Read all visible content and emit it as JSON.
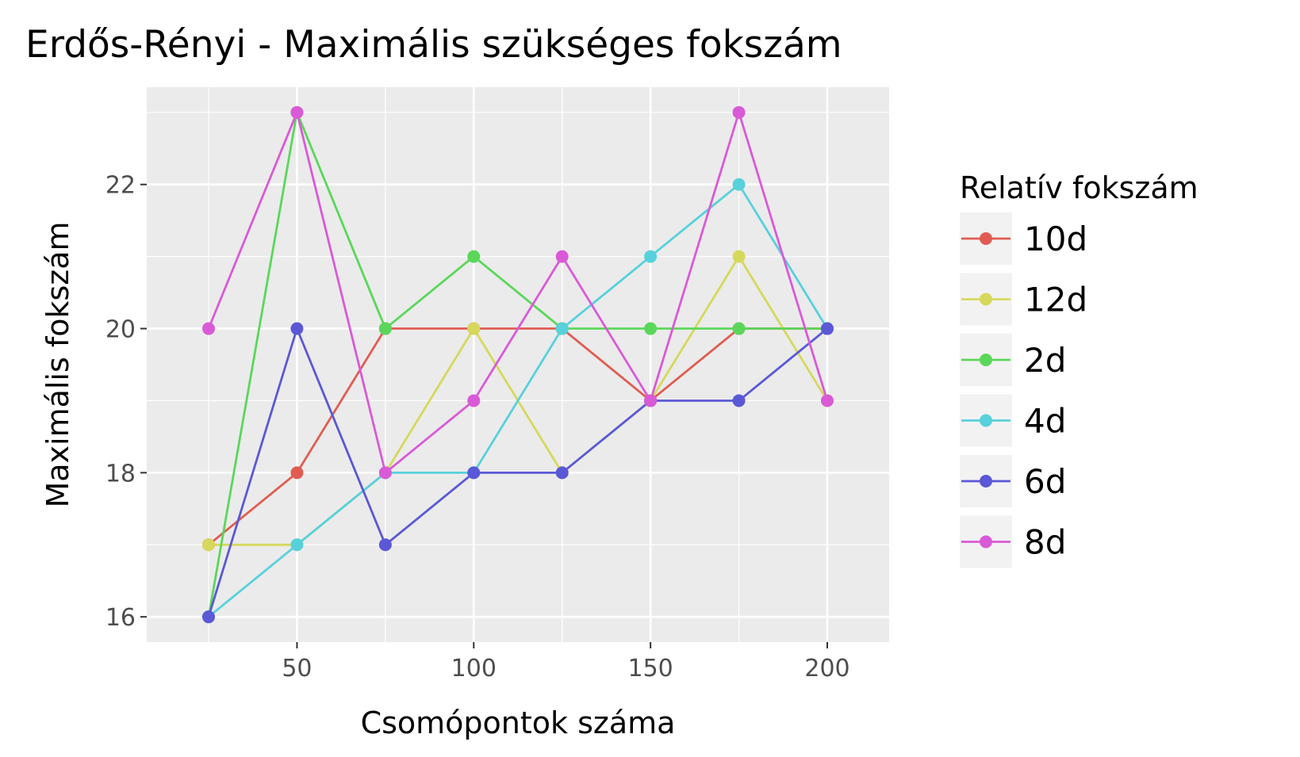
{
  "chart_data": {
    "type": "line",
    "title": "Erdős-Rényi - Maximális szükséges fokszám",
    "xlabel": "Csomópontok száma",
    "ylabel": "Maximális fokszám",
    "x": [
      25,
      50,
      75,
      100,
      125,
      150,
      175,
      200
    ],
    "xlim": [
      7.5,
      217.5
    ],
    "ylim": [
      15.65,
      23.35
    ],
    "xticks": [
      50,
      100,
      150,
      200
    ],
    "yticks": [
      16,
      18,
      20,
      22
    ],
    "grid": true,
    "legend": {
      "title": "Relatív fokszám",
      "position": "right"
    },
    "series": [
      {
        "name": "10d",
        "color": "#E05C53",
        "values": [
          17,
          18,
          20,
          20,
          20,
          19,
          20,
          20
        ]
      },
      {
        "name": "12d",
        "color": "#D6D85C",
        "values": [
          17,
          17,
          18,
          20,
          18,
          19,
          21,
          19
        ]
      },
      {
        "name": "2d",
        "color": "#5AD75A",
        "values": [
          16,
          23,
          20,
          21,
          20,
          20,
          20,
          20
        ]
      },
      {
        "name": "4d",
        "color": "#57D1DB",
        "values": [
          16,
          17,
          18,
          18,
          20,
          21,
          22,
          20
        ]
      },
      {
        "name": "6d",
        "color": "#5A58D6",
        "values": [
          16,
          20,
          17,
          18,
          18,
          19,
          19,
          20
        ]
      },
      {
        "name": "8d",
        "color": "#D95AD6",
        "values": [
          20,
          23,
          18,
          19,
          21,
          19,
          23,
          19
        ]
      }
    ]
  }
}
